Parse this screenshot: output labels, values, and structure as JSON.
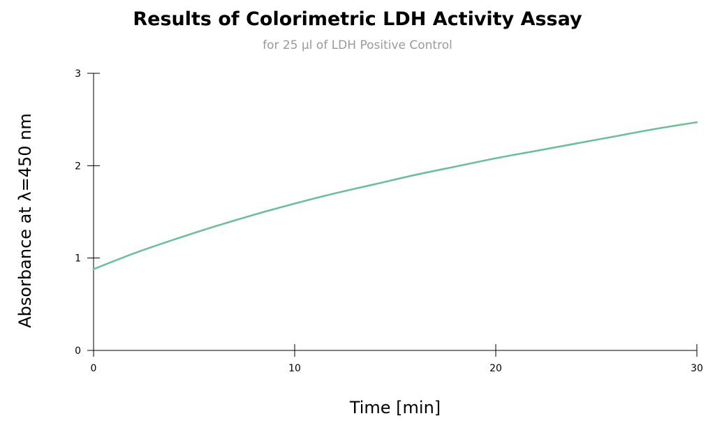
{
  "chart_data": {
    "type": "line",
    "title": "Results of Colorimetric LDH Activity Assay",
    "subtitle": "for 25 µl of LDH Positive Control",
    "xlabel": "Time [min]",
    "ylabel": "Absorbance at λ=450 nm",
    "xlim": [
      0,
      30
    ],
    "ylim": [
      0,
      3
    ],
    "x_ticks": [
      0,
      10,
      20,
      30
    ],
    "y_ticks": [
      0,
      1,
      2,
      3
    ],
    "grid": false,
    "series": [
      {
        "color": "#6dbf9c",
        "x": [
          0,
          2,
          4,
          6,
          8,
          10,
          12,
          14,
          16,
          18,
          20,
          22,
          24,
          26,
          28,
          30
        ],
        "y": [
          0.88,
          1.05,
          1.2,
          1.34,
          1.47,
          1.59,
          1.7,
          1.8,
          1.9,
          1.99,
          2.08,
          2.16,
          2.24,
          2.32,
          2.4,
          2.47
        ]
      }
    ]
  }
}
